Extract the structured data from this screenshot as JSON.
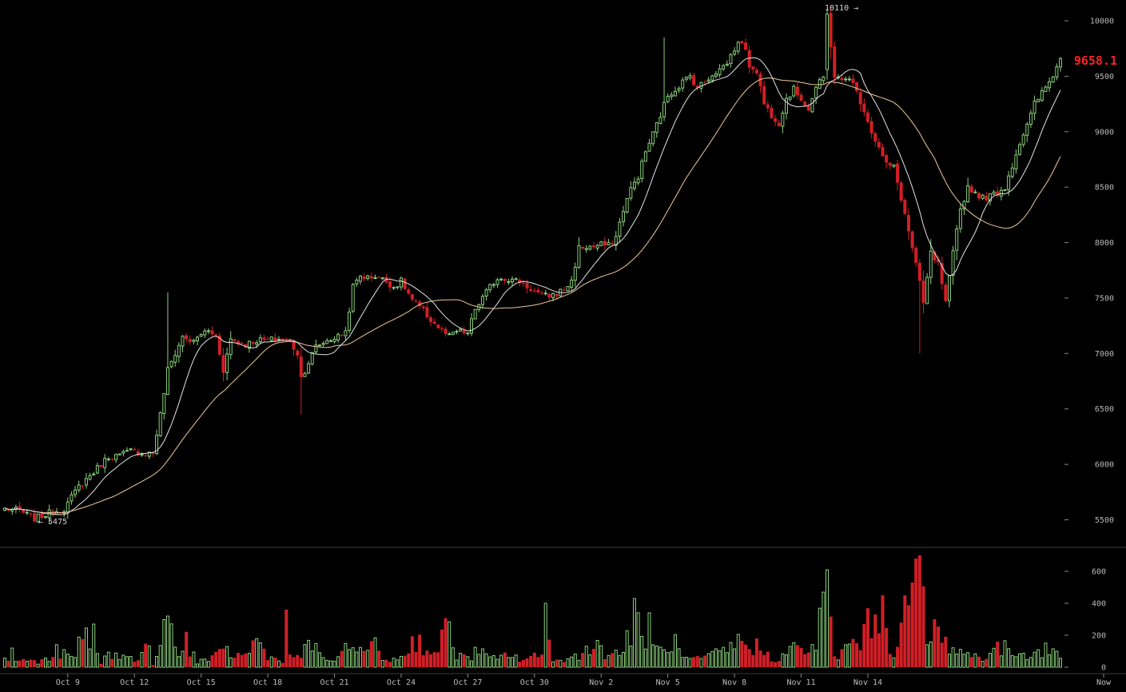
{
  "chart_data": {
    "type": "candlestick",
    "interval_hours": 4,
    "x_labels": [
      "Oct 9",
      "Oct 12",
      "Oct 15",
      "Oct 18",
      "Oct 21",
      "Oct 24",
      "Oct 27",
      "Oct 30",
      "Nov 2",
      "Nov 5",
      "Nov 8",
      "Nov 11",
      "Nov 14",
      "Now"
    ],
    "price_axis": {
      "ticks": [
        5500,
        6000,
        6500,
        7000,
        7500,
        8000,
        8500,
        9000,
        9500,
        10000
      ],
      "range": [
        5230,
        10140
      ]
    },
    "volume_axis": {
      "ticks": [
        0,
        200,
        400,
        600
      ],
      "range": [
        0,
        700
      ]
    },
    "last_price": "9658.1",
    "high_marker": "10110 →",
    "low_marker": "← 5475",
    "colors": {
      "up": "#8ad07a",
      "down": "#d11f26",
      "last_price": "#ff2020",
      "ma_fast": "#e4e4e4",
      "ma_slow": "#f0c898",
      "axis_text": "#b8b8b8"
    },
    "price_path": [
      [
        0,
        5600
      ],
      [
        4,
        5580
      ],
      [
        8,
        5510
      ],
      [
        12,
        5560
      ],
      [
        16,
        5600
      ],
      [
        20,
        5800
      ],
      [
        24,
        5930
      ],
      [
        28,
        6070
      ],
      [
        31,
        6080
      ],
      [
        34,
        6120
      ],
      [
        37,
        6100
      ],
      [
        40,
        6100
      ],
      [
        42,
        6450
      ],
      [
        44,
        6850
      ],
      [
        46,
        7000
      ],
      [
        48,
        7150
      ],
      [
        51,
        7100
      ],
      [
        53,
        7180
      ],
      [
        55,
        7200
      ],
      [
        57,
        7160
      ],
      [
        59,
        6850
      ],
      [
        61,
        7130
      ],
      [
        63,
        7100
      ],
      [
        65,
        7080
      ],
      [
        68,
        7120
      ],
      [
        71,
        7120
      ],
      [
        74,
        7130
      ],
      [
        77,
        7100
      ],
      [
        79,
        7000
      ],
      [
        80,
        6780
      ],
      [
        82,
        6920
      ],
      [
        84,
        7060
      ],
      [
        86,
        7100
      ],
      [
        88,
        7130
      ],
      [
        90,
        7150
      ],
      [
        92,
        7200
      ],
      [
        94,
        7600
      ],
      [
        96,
        7700
      ],
      [
        98,
        7680
      ],
      [
        100,
        7700
      ],
      [
        103,
        7650
      ],
      [
        105,
        7600
      ],
      [
        107,
        7650
      ],
      [
        110,
        7480
      ],
      [
        113,
        7380
      ],
      [
        115,
        7300
      ],
      [
        118,
        7200
      ],
      [
        120,
        7150
      ],
      [
        122,
        7200
      ],
      [
        125,
        7180
      ],
      [
        127,
        7400
      ],
      [
        129,
        7500
      ],
      [
        131,
        7600
      ],
      [
        133,
        7680
      ],
      [
        135,
        7680
      ],
      [
        137,
        7660
      ],
      [
        139,
        7650
      ],
      [
        141,
        7600
      ],
      [
        143,
        7560
      ],
      [
        145,
        7520
      ],
      [
        147,
        7520
      ],
      [
        149,
        7540
      ],
      [
        151,
        7580
      ],
      [
        153,
        7650
      ],
      [
        155,
        7950
      ],
      [
        157,
        7960
      ],
      [
        159,
        7960
      ],
      [
        161,
        7980
      ],
      [
        163,
        7970
      ],
      [
        165,
        8050
      ],
      [
        167,
        8300
      ],
      [
        169,
        8480
      ],
      [
        171,
        8600
      ],
      [
        173,
        8820
      ],
      [
        175,
        8980
      ],
      [
        177,
        9150
      ],
      [
        179,
        9330
      ],
      [
        181,
        9380
      ],
      [
        183,
        9450
      ],
      [
        185,
        9500
      ],
      [
        187,
        9400
      ],
      [
        189,
        9450
      ],
      [
        191,
        9520
      ],
      [
        193,
        9560
      ],
      [
        195,
        9620
      ],
      [
        197,
        9750
      ],
      [
        199,
        9820
      ],
      [
        201,
        9600
      ],
      [
        203,
        9550
      ],
      [
        205,
        9250
      ],
      [
        207,
        9150
      ],
      [
        209,
        9080
      ],
      [
        211,
        9300
      ],
      [
        213,
        9380
      ],
      [
        215,
        9300
      ],
      [
        217,
        9200
      ],
      [
        219,
        9400
      ],
      [
        221,
        9480
      ],
      [
        222,
        10060
      ],
      [
        224,
        9500
      ],
      [
        226,
        9450
      ],
      [
        228,
        9500
      ],
      [
        230,
        9350
      ],
      [
        232,
        9200
      ],
      [
        234,
        9000
      ],
      [
        236,
        8850
      ],
      [
        238,
        8700
      ],
      [
        240,
        8680
      ],
      [
        242,
        8400
      ],
      [
        244,
        8100
      ],
      [
        246,
        7800
      ],
      [
        248,
        7450
      ],
      [
        250,
        7900
      ],
      [
        252,
        7800
      ],
      [
        254,
        7450
      ],
      [
        256,
        7900
      ],
      [
        258,
        8300
      ],
      [
        260,
        8500
      ],
      [
        262,
        8450
      ],
      [
        264,
        8400
      ],
      [
        266,
        8420
      ],
      [
        268,
        8450
      ],
      [
        270,
        8500
      ],
      [
        272,
        8700
      ],
      [
        274,
        8900
      ],
      [
        276,
        9050
      ],
      [
        278,
        9250
      ],
      [
        280,
        9350
      ],
      [
        282,
        9450
      ],
      [
        284,
        9580
      ],
      [
        285,
        9658
      ]
    ],
    "volume_profile": [
      [
        0,
        60
      ],
      [
        8,
        40
      ],
      [
        12,
        50
      ],
      [
        14,
        110
      ],
      [
        18,
        60
      ],
      [
        20,
        140
      ],
      [
        22,
        260
      ],
      [
        24,
        100
      ],
      [
        26,
        40
      ],
      [
        30,
        120
      ],
      [
        33,
        60
      ],
      [
        36,
        50
      ],
      [
        38,
        170
      ],
      [
        40,
        30
      ],
      [
        42,
        120
      ],
      [
        44,
        330
      ],
      [
        47,
        60
      ],
      [
        49,
        190
      ],
      [
        52,
        40
      ],
      [
        56,
        60
      ],
      [
        60,
        110
      ],
      [
        64,
        70
      ],
      [
        68,
        180
      ],
      [
        72,
        60
      ],
      [
        76,
        60
      ],
      [
        80,
        90
      ],
      [
        83,
        150
      ],
      [
        86,
        60
      ],
      [
        90,
        50
      ],
      [
        93,
        140
      ],
      [
        95,
        210
      ],
      [
        97,
        80
      ],
      [
        99,
        180
      ],
      [
        102,
        60
      ],
      [
        106,
        50
      ],
      [
        109,
        140
      ],
      [
        111,
        200
      ],
      [
        114,
        130
      ],
      [
        117,
        90
      ],
      [
        120,
        360
      ],
      [
        122,
        70
      ],
      [
        125,
        70
      ],
      [
        128,
        110
      ],
      [
        131,
        60
      ],
      [
        133,
        50
      ],
      [
        136,
        100
      ],
      [
        139,
        50
      ],
      [
        142,
        70
      ],
      [
        145,
        70
      ],
      [
        146,
        400
      ],
      [
        148,
        60
      ],
      [
        150,
        40
      ],
      [
        152,
        50
      ],
      [
        155,
        90
      ],
      [
        158,
        170
      ],
      [
        161,
        120
      ],
      [
        164,
        90
      ],
      [
        167,
        120
      ],
      [
        170,
        330
      ],
      [
        173,
        140
      ],
      [
        175,
        130
      ],
      [
        178,
        100
      ],
      [
        180,
        200
      ],
      [
        183,
        60
      ],
      [
        186,
        50
      ],
      [
        189,
        60
      ],
      [
        193,
        100
      ],
      [
        195,
        120
      ],
      [
        198,
        170
      ],
      [
        201,
        160
      ],
      [
        204,
        130
      ],
      [
        207,
        60
      ],
      [
        210,
        80
      ],
      [
        213,
        130
      ],
      [
        216,
        110
      ],
      [
        219,
        160
      ],
      [
        221,
        460
      ],
      [
        222,
        580
      ],
      [
        224,
        60
      ],
      [
        226,
        100
      ],
      [
        228,
        160
      ],
      [
        230,
        180
      ],
      [
        232,
        220
      ],
      [
        234,
        330
      ],
      [
        236,
        440
      ],
      [
        238,
        200
      ],
      [
        240,
        80
      ],
      [
        242,
        460
      ],
      [
        244,
        330
      ],
      [
        246,
        520
      ],
      [
        247,
        670
      ],
      [
        249,
        140
      ],
      [
        251,
        300
      ],
      [
        253,
        160
      ],
      [
        255,
        170
      ],
      [
        257,
        120
      ],
      [
        259,
        100
      ],
      [
        261,
        80
      ],
      [
        264,
        70
      ],
      [
        267,
        130
      ],
      [
        269,
        110
      ],
      [
        271,
        140
      ],
      [
        273,
        90
      ],
      [
        275,
        100
      ],
      [
        277,
        110
      ],
      [
        279,
        100
      ],
      [
        282,
        120
      ],
      [
        285,
        80
      ]
    ],
    "volume_overrides": {
      "2": 120,
      "24": 270,
      "44": 320,
      "76": 360,
      "146": 400,
      "174": 340,
      "221": 470,
      "222": 610,
      "235": 330,
      "237": 450,
      "243": 450,
      "245": 530,
      "246": 680,
      "247": 700,
      "251": 300
    },
    "ma_fast_period": 10,
    "ma_slow_period": 30
  }
}
